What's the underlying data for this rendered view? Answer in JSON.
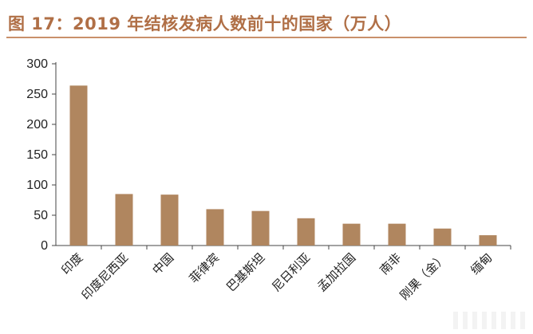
{
  "title": "图 17：2019 年结核发病人数前十的国家（万人）",
  "colors": {
    "bar": "#b0865f",
    "title": "#b06f46",
    "rule": "#c9906b",
    "axis": "#444444"
  },
  "chart_data": {
    "type": "bar",
    "title": "图 17：2019 年结核发病人数前十的国家（万人）",
    "xlabel": "",
    "ylabel": "",
    "ylim": [
      0,
      300
    ],
    "yticks": [
      0,
      50,
      100,
      150,
      200,
      250,
      300
    ],
    "categories": [
      "印度",
      "印度尼西亚",
      "中国",
      "菲律宾",
      "巴基斯坦",
      "尼日利亚",
      "孟加拉国",
      "南非",
      "刚果（金）",
      "缅甸"
    ],
    "values": [
      264,
      85,
      84,
      60,
      57,
      45,
      36,
      36,
      28,
      17
    ],
    "grid": false,
    "legend": "none"
  }
}
